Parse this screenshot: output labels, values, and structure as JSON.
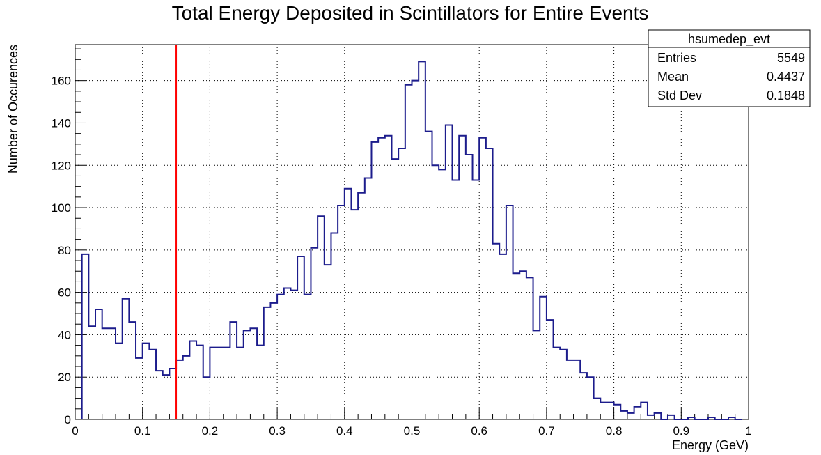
{
  "chart_data": {
    "type": "bar",
    "histogram": true,
    "title": "Total Energy Deposited in Scintillators for Entire Events",
    "xlabel": "Energy (GeV)",
    "ylabel": "Number of Occurences",
    "xlim": [
      0,
      1
    ],
    "ylim": [
      0,
      177
    ],
    "grid": true,
    "line_color": "#1c1c8c",
    "cut_line": {
      "x": 0.15,
      "color": "#ff0000"
    },
    "x_ticks": [
      {
        "value": 0,
        "label": "0"
      },
      {
        "value": 0.1,
        "label": "0.1"
      },
      {
        "value": 0.2,
        "label": "0.2"
      },
      {
        "value": 0.3,
        "label": "0.3"
      },
      {
        "value": 0.4,
        "label": "0.4"
      },
      {
        "value": 0.5,
        "label": "0.5"
      },
      {
        "value": 0.6,
        "label": "0.6"
      },
      {
        "value": 0.7,
        "label": "0.7"
      },
      {
        "value": 0.8,
        "label": "0.8"
      },
      {
        "value": 0.9,
        "label": "0.9"
      },
      {
        "value": 1,
        "label": "1"
      }
    ],
    "y_ticks": [
      {
        "value": 0,
        "label": "0"
      },
      {
        "value": 20,
        "label": "20"
      },
      {
        "value": 40,
        "label": "40"
      },
      {
        "value": 60,
        "label": "60"
      },
      {
        "value": 80,
        "label": "80"
      },
      {
        "value": 100,
        "label": "100"
      },
      {
        "value": 120,
        "label": "120"
      },
      {
        "value": 140,
        "label": "140"
      },
      {
        "value": 160,
        "label": "160"
      }
    ],
    "bins": {
      "edges": [
        0.01,
        0.02,
        0.03,
        0.04,
        0.05,
        0.06,
        0.07,
        0.08,
        0.09,
        0.1,
        0.11,
        0.12,
        0.13,
        0.14,
        0.15,
        0.16,
        0.17,
        0.18,
        0.19,
        0.2,
        0.21,
        0.22,
        0.23,
        0.24,
        0.25,
        0.26,
        0.27,
        0.28,
        0.29,
        0.3,
        0.31,
        0.32,
        0.33,
        0.34,
        0.35,
        0.36,
        0.37,
        0.38,
        0.39,
        0.4,
        0.41,
        0.42,
        0.43,
        0.44,
        0.45,
        0.46,
        0.47,
        0.48,
        0.49,
        0.5,
        0.51,
        0.52,
        0.53,
        0.54,
        0.55,
        0.56,
        0.57,
        0.58,
        0.59,
        0.6,
        0.61,
        0.62,
        0.63,
        0.64,
        0.65,
        0.66,
        0.67,
        0.68,
        0.69,
        0.7,
        0.71,
        0.72,
        0.73,
        0.74,
        0.75,
        0.76,
        0.77,
        0.78,
        0.79,
        0.8,
        0.81,
        0.82,
        0.83,
        0.84,
        0.85,
        0.86,
        0.87,
        0.88,
        0.89,
        0.9,
        0.91,
        0.92,
        0.93,
        0.94,
        0.95,
        0.96,
        0.97,
        0.98,
        0.99
      ],
      "counts": [
        78,
        44,
        52,
        43,
        43,
        36,
        57,
        46,
        29,
        36,
        33,
        23,
        21,
        24,
        28,
        30,
        37,
        35,
        20,
        34,
        34,
        34,
        46,
        34,
        42,
        43,
        35,
        53,
        55,
        59,
        62,
        61,
        77,
        59,
        81,
        96,
        73,
        88,
        101,
        109,
        99,
        107,
        114,
        131,
        133,
        134,
        123,
        128,
        158,
        160,
        169,
        136,
        120,
        118,
        139,
        113,
        134,
        125,
        113,
        133,
        128,
        83,
        78,
        101,
        69,
        70,
        67,
        42,
        58,
        47,
        34,
        33,
        28,
        28,
        22,
        20,
        10,
        8,
        8,
        7,
        4,
        3,
        6,
        8,
        2,
        3,
        0,
        2,
        0,
        0,
        1,
        0,
        0,
        1,
        0,
        0,
        1,
        0
      ]
    },
    "stats_box": {
      "name": "hsumedep_evt",
      "rows": [
        {
          "label": "Entries",
          "value": "5549"
        },
        {
          "label": "Mean",
          "value": "0.4437"
        },
        {
          "label": "Std Dev",
          "value": "0.1848"
        }
      ]
    }
  }
}
